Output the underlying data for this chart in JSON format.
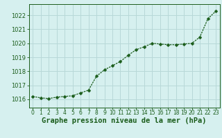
{
  "x": [
    0,
    1,
    2,
    3,
    4,
    5,
    6,
    7,
    8,
    9,
    10,
    11,
    12,
    13,
    14,
    15,
    16,
    17,
    18,
    19,
    20,
    21,
    22,
    23
  ],
  "y": [
    1016.2,
    1016.1,
    1016.05,
    1016.15,
    1016.2,
    1016.25,
    1016.45,
    1016.65,
    1017.65,
    1018.1,
    1018.4,
    1018.7,
    1019.15,
    1019.55,
    1019.75,
    1020.0,
    1019.95,
    1019.9,
    1019.9,
    1019.95,
    1020.0,
    1020.45,
    1021.75,
    1022.3
  ],
  "line_color": "#1a5c1a",
  "marker": "D",
  "marker_size": 2.5,
  "bg_color": "#d6f0ef",
  "grid_color": "#b8d8d8",
  "xlabel": "Graphe pression niveau de la mer (hPa)",
  "xlabel_color": "#1a5c1a",
  "ylabel_ticks": [
    1016,
    1017,
    1018,
    1019,
    1020,
    1021,
    1022
  ],
  "xtick_labels": [
    "0",
    "1",
    "2",
    "3",
    "4",
    "5",
    "6",
    "7",
    "8",
    "9",
    "10",
    "11",
    "12",
    "13",
    "14",
    "15",
    "16",
    "17",
    "18",
    "19",
    "20",
    "21",
    "22",
    "23"
  ],
  "ylim": [
    1015.4,
    1022.8
  ],
  "xlim": [
    -0.5,
    23.5
  ],
  "tick_color": "#1a5c1a",
  "ytick_fontsize": 6.0,
  "xtick_fontsize": 5.5,
  "xlabel_fontsize": 7.5,
  "spine_color": "#1a5c1a",
  "linewidth": 0.9
}
